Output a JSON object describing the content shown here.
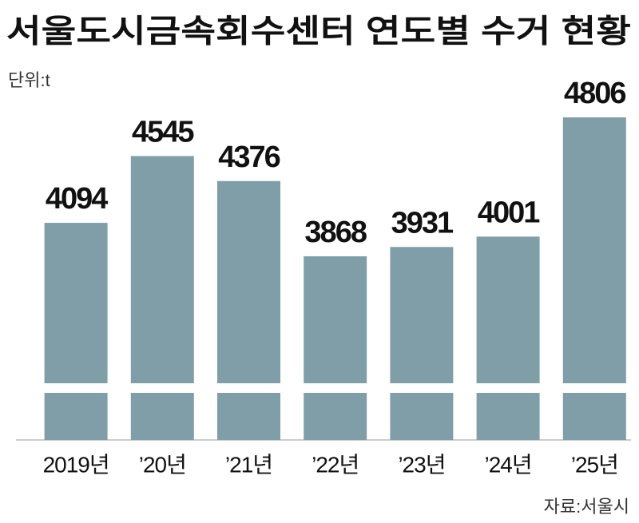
{
  "chart_data": {
    "type": "bar",
    "title": "서울도시금속회수센터 연도별 수거 현황",
    "unit": "단위:t",
    "source": "자료:서울시",
    "categories": [
      "2019년",
      "’20년",
      "’21년",
      "’22년",
      "’23년",
      "’24년",
      "’25년"
    ],
    "values": [
      4094,
      4545,
      4376,
      3868,
      3931,
      4001,
      4806
    ],
    "color": "#7f9ea8",
    "axis_break": true
  }
}
